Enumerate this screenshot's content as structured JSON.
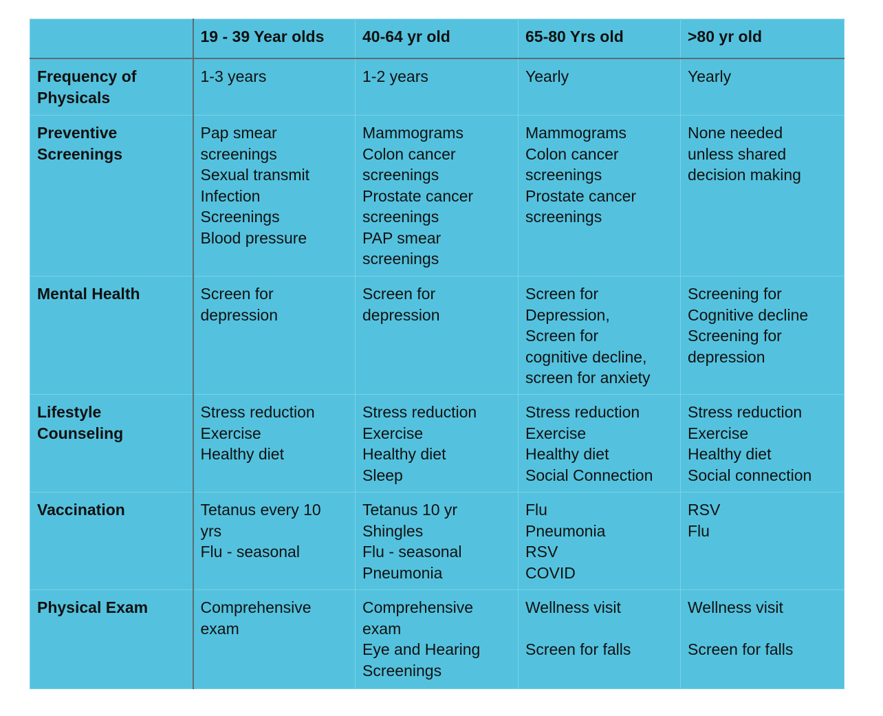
{
  "table": {
    "columns": [
      "",
      "19 - 39 Year olds",
      "40-64 yr old",
      "65-80 Yrs old",
      ">80 yr old"
    ],
    "rows": [
      {
        "key": "freq",
        "header": [
          "Frequency of",
          "Physicals"
        ],
        "cells": [
          [
            "1-3 years"
          ],
          [
            "1-2 years"
          ],
          [
            "Yearly"
          ],
          [
            "Yearly"
          ]
        ]
      },
      {
        "key": "prev",
        "header": [
          "Preventive",
          "Screenings"
        ],
        "cells": [
          [
            "Pap smear",
            "screenings",
            "Sexual transmit",
            "Infection",
            "Screenings",
            "Blood pressure"
          ],
          [
            "Mammograms",
            "Colon cancer",
            "screenings",
            "Prostate cancer",
            "screenings",
            "PAP smear",
            "screenings"
          ],
          [
            "Mammograms",
            "Colon cancer",
            "screenings",
            "Prostate cancer",
            "screenings"
          ],
          [
            "None needed",
            "unless shared",
            "decision making"
          ]
        ]
      },
      {
        "key": "mental",
        "header": [
          "Mental Health"
        ],
        "cells": [
          [
            "Screen for",
            "depression"
          ],
          [
            "Screen for",
            "depression"
          ],
          [
            "Screen for",
            "Depression,",
            "Screen for",
            "cognitive decline,",
            "screen for anxiety"
          ],
          [
            "Screening for",
            "Cognitive decline",
            "Screening for",
            "depression"
          ]
        ]
      },
      {
        "key": "life",
        "header": [
          "Lifestyle",
          "Counseling"
        ],
        "cells": [
          [
            "Stress reduction",
            "Exercise",
            "Healthy diet"
          ],
          [
            " Stress reduction",
            "Exercise",
            "Healthy diet",
            "Sleep"
          ],
          [
            "Stress reduction",
            "Exercise",
            "Healthy diet",
            "Social Connection"
          ],
          [
            "Stress reduction",
            "Exercise",
            "Healthy diet",
            "Social connection"
          ]
        ]
      },
      {
        "key": "vacc",
        "header": [
          "Vaccination"
        ],
        "cells": [
          [
            "Tetanus every 10",
            "yrs",
            "Flu - seasonal"
          ],
          [
            "Tetanus 10 yr",
            "Shingles",
            "Flu - seasonal",
            "Pneumonia"
          ],
          [
            "Flu",
            "Pneumonia",
            "RSV",
            "COVID"
          ],
          [
            "RSV",
            "Flu"
          ]
        ]
      },
      {
        "key": "exam",
        "header": [
          "Physical Exam"
        ],
        "cells": [
          [
            "Comprehensive",
            "exam"
          ],
          [
            "Comprehensive",
            "exam",
            "Eye and Hearing",
            "Screenings"
          ],
          [
            "Wellness visit",
            "",
            "Screen for falls"
          ],
          [
            "Wellness visit",
            "",
            "Screen for falls"
          ]
        ]
      }
    ]
  }
}
